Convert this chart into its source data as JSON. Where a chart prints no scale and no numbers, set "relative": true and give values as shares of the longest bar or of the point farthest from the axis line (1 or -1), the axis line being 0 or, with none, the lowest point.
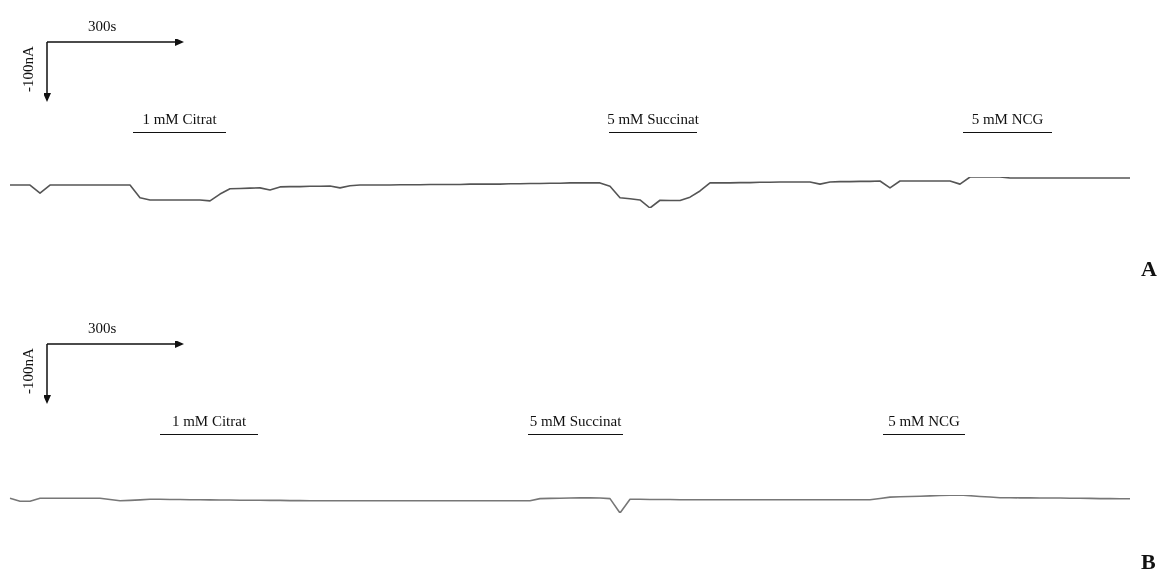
{
  "chart_data": [
    {
      "type": "line",
      "title": "A",
      "relative": true,
      "tick_labels": false,
      "legend": false,
      "annotations": [
        "300s",
        "-100nA",
        "1 mM Citrat",
        "5 mM Succinat",
        "5 mM NCG"
      ],
      "categories": [
        null,
        null,
        null,
        null,
        null,
        null,
        null,
        null,
        null,
        null,
        null,
        null,
        null,
        null,
        null,
        null,
        null,
        null,
        null,
        null,
        null,
        null,
        null,
        null,
        null,
        null,
        null,
        null,
        null,
        null,
        null,
        null,
        null,
        null,
        null,
        null,
        null,
        null,
        null,
        null,
        null,
        null,
        null,
        null,
        null,
        null,
        null,
        null,
        null,
        null,
        null,
        null,
        null,
        null,
        null,
        null,
        null,
        null,
        null,
        null,
        null,
        null,
        null,
        null,
        null,
        null,
        null,
        null,
        null,
        null,
        null,
        null,
        null,
        null,
        null,
        null,
        null,
        null,
        null,
        null,
        null,
        null,
        null,
        null,
        null,
        null,
        null,
        null,
        null,
        null,
        null,
        null,
        null,
        null,
        null,
        null,
        null,
        null,
        null,
        null,
        null,
        null,
        null,
        null,
        null,
        null,
        null,
        null,
        null,
        null,
        null,
        null,
        null
      ],
      "series": [
        {
          "color": "#555555",
          "values": [
            0.74,
            0.74,
            0.74,
            0.48,
            0.74,
            0.74,
            0.74,
            0.74,
            0.74,
            0.74,
            0.74,
            0.74,
            0.74,
            0.33,
            0.26,
            0.26,
            0.26,
            0.26,
            0.26,
            0.26,
            0.23,
            0.45,
            0.62,
            0.63,
            0.64,
            0.65,
            0.58,
            0.68,
            0.69,
            0.69,
            0.7,
            0.7,
            0.71,
            0.65,
            0.72,
            0.74,
            0.74,
            0.74,
            0.74,
            0.75,
            0.75,
            0.75,
            0.76,
            0.76,
            0.76,
            0.76,
            0.77,
            0.77,
            0.77,
            0.77,
            0.78,
            0.78,
            0.79,
            0.79,
            0.8,
            0.8,
            0.81,
            0.81,
            0.81,
            0.81,
            0.7,
            0.33,
            0.3,
            0.26,
            0,
            0.25,
            0.24,
            0.24,
            0.35,
            0.55,
            0.81,
            0.81,
            0.81,
            0.82,
            0.82,
            0.83,
            0.83,
            0.84,
            0.84,
            0.84,
            0.84,
            0.77,
            0.84,
            0.85,
            0.85,
            0.86,
            0.86,
            0.87,
            0.65,
            0.87,
            0.87,
            0.87,
            0.87,
            0.87,
            0.87,
            0.77,
            1,
            1,
            1,
            1,
            0.97,
            0.97,
            0.97,
            0.97,
            0.97,
            0.97,
            0.97,
            0.97,
            0.97,
            0.97,
            0.97,
            0.97,
            0.97
          ]
        }
      ]
    },
    {
      "type": "line",
      "title": "B",
      "relative": true,
      "tick_labels": false,
      "legend": false,
      "annotations": [
        "300s",
        "-100nA",
        "1 mM Citrat",
        "5 mM Succinat",
        "5 mM NCG"
      ],
      "categories": [
        null,
        null,
        null,
        null,
        null,
        null,
        null,
        null,
        null,
        null,
        null,
        null,
        null,
        null,
        null,
        null,
        null,
        null,
        null,
        null,
        null,
        null,
        null,
        null,
        null,
        null,
        null,
        null,
        null,
        null,
        null,
        null,
        null,
        null,
        null,
        null,
        null,
        null,
        null,
        null,
        null,
        null,
        null,
        null,
        null,
        null,
        null,
        null,
        null,
        null,
        null,
        null,
        null,
        null,
        null,
        null,
        null,
        null,
        null,
        null,
        null,
        null,
        null,
        null,
        null,
        null,
        null,
        null,
        null,
        null,
        null,
        null,
        null,
        null,
        null,
        null,
        null,
        null,
        null,
        null,
        null,
        null,
        null,
        null,
        null,
        null,
        null,
        null,
        null,
        null,
        null,
        null,
        null,
        null,
        null,
        null,
        null,
        null,
        null,
        null,
        null,
        null,
        null,
        null,
        null,
        null,
        null,
        null,
        null,
        null,
        null,
        null,
        null
      ],
      "series": [
        {
          "color": "#777777",
          "values": [
            0.82,
            0.65,
            0.65,
            0.82,
            0.82,
            0.82,
            0.82,
            0.82,
            0.82,
            0.82,
            0.75,
            0.68,
            0.7,
            0.73,
            0.76,
            0.76,
            0.75,
            0.75,
            0.74,
            0.74,
            0.73,
            0.72,
            0.72,
            0.71,
            0.71,
            0.71,
            0.7,
            0.7,
            0.69,
            0.69,
            0.68,
            0.68,
            0.68,
            0.68,
            0.68,
            0.68,
            0.68,
            0.68,
            0.68,
            0.68,
            0.68,
            0.68,
            0.68,
            0.68,
            0.68,
            0.68,
            0.68,
            0.68,
            0.68,
            0.68,
            0.68,
            0.68,
            0.68,
            0.8,
            0.81,
            0.82,
            0.83,
            0.84,
            0.85,
            0.83,
            0.8,
            0,
            0.76,
            0.76,
            0.75,
            0.75,
            0.75,
            0.74,
            0.74,
            0.74,
            0.74,
            0.74,
            0.74,
            0.74,
            0.74,
            0.74,
            0.74,
            0.74,
            0.74,
            0.74,
            0.74,
            0.74,
            0.74,
            0.74,
            0.74,
            0.74,
            0.74,
            0.81,
            0.88,
            0.9,
            0.92,
            0.93,
            0.95,
            0.97,
            0.99,
            1,
            0.96,
            0.92,
            0.89,
            0.85,
            0.85,
            0.84,
            0.84,
            0.83,
            0.83,
            0.83,
            0.82,
            0.82,
            0.81,
            0.8,
            0.8,
            0.79,
            0.79
          ]
        }
      ]
    }
  ]
}
